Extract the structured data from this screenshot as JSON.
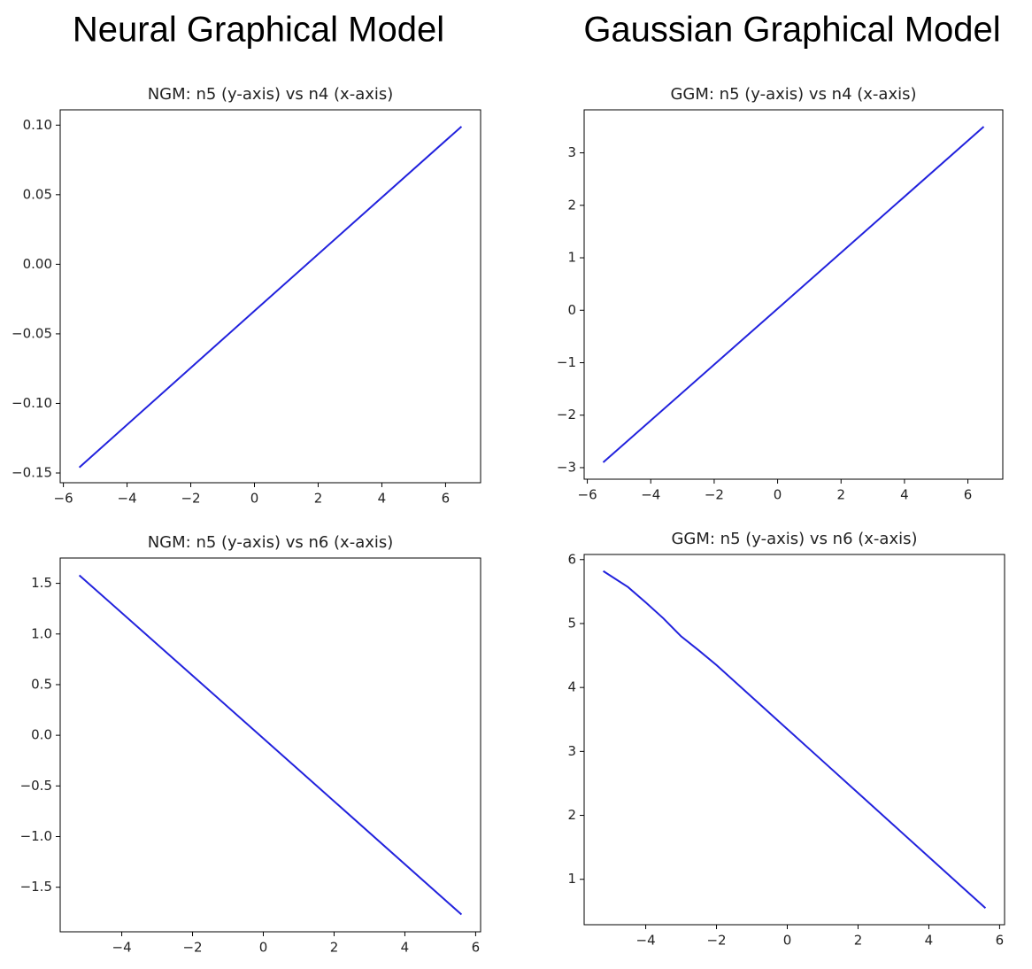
{
  "column_titles": [
    "Neural Graphical Model",
    "Gaussian Graphical Model"
  ],
  "chart_data": [
    {
      "type": "line",
      "title": "NGM: n5 (y-axis) vs n4 (x-axis)",
      "color": "#2222dd",
      "x": [
        -5.5,
        0,
        6.5
      ],
      "values": [
        -0.146,
        -0.0335,
        0.099
      ],
      "xlim": [
        -6.1,
        7.1
      ],
      "ylim": [
        -0.157,
        0.111
      ],
      "xticks": [
        {
          "value": -6,
          "label": "−6"
        },
        {
          "value": -4,
          "label": "−4"
        },
        {
          "value": -2,
          "label": "−2"
        },
        0,
        2,
        4,
        6
      ],
      "yticks": [
        {
          "value": -0.15,
          "label": "−0.15"
        },
        {
          "value": -0.1,
          "label": "−0.10"
        },
        {
          "value": -0.05,
          "label": "−0.05"
        },
        {
          "value": 0,
          "label": "0.00"
        },
        {
          "value": 0.05,
          "label": "0.05"
        },
        {
          "value": 0.1,
          "label": "0.10"
        }
      ]
    },
    {
      "type": "line",
      "title": "GGM: n5 (y-axis) vs n4 (x-axis)",
      "color": "#2222dd",
      "x": [
        -5.5,
        0,
        6.5
      ],
      "values": [
        -2.9,
        0.03,
        3.5
      ],
      "xlim": [
        -6.1,
        7.1
      ],
      "ylim": [
        -3.22,
        3.82
      ],
      "xticks": [
        {
          "value": -6,
          "label": "−6"
        },
        {
          "value": -4,
          "label": "−4"
        },
        {
          "value": -2,
          "label": "−2"
        },
        0,
        2,
        4,
        6
      ],
      "yticks": [
        {
          "value": -3,
          "label": "−3"
        },
        {
          "value": -2,
          "label": "−2"
        },
        {
          "value": -1,
          "label": "−1"
        },
        0,
        1,
        2,
        3
      ]
    },
    {
      "type": "line",
      "title": "NGM: n5 (y-axis) vs n6 (x-axis)",
      "color": "#2222dd",
      "x": [
        -5.2,
        0,
        5.6
      ],
      "values": [
        1.58,
        -0.03,
        -1.77
      ],
      "xlim": [
        -5.74,
        6.14
      ],
      "ylim": [
        -1.94,
        1.75
      ],
      "xticks": [
        {
          "value": -4,
          "label": "−4"
        },
        {
          "value": -2,
          "label": "−2"
        },
        0,
        2,
        4,
        6
      ],
      "yticks": [
        {
          "value": -1.5,
          "label": "−1.5"
        },
        {
          "value": -1,
          "label": "−1.0"
        },
        {
          "value": -0.5,
          "label": "−0.5"
        },
        {
          "value": 0,
          "label": "0.0"
        },
        0.5,
        {
          "value": 1,
          "label": "1.0"
        },
        1.5
      ]
    },
    {
      "type": "line",
      "title": "GGM: n5 (y-axis) vs n6 (x-axis)",
      "color": "#2222dd",
      "x": [
        -5.2,
        -4.5,
        -4,
        -3.5,
        -3,
        -2.5,
        -2,
        -1,
        0,
        1,
        2,
        3,
        4,
        5,
        5.6
      ],
      "values": [
        5.82,
        5.57,
        5.33,
        5.08,
        4.8,
        4.58,
        4.35,
        3.85,
        3.35,
        2.85,
        2.35,
        1.85,
        1.35,
        0.85,
        0.55
      ],
      "xlim": [
        -5.74,
        6.14
      ],
      "ylim": [
        0.29,
        6.08
      ],
      "xticks": [
        {
          "value": -4,
          "label": "−4"
        },
        {
          "value": -2,
          "label": "−2"
        },
        0,
        2,
        4,
        6
      ],
      "yticks": [
        1,
        2,
        3,
        4,
        5,
        6
      ]
    }
  ]
}
